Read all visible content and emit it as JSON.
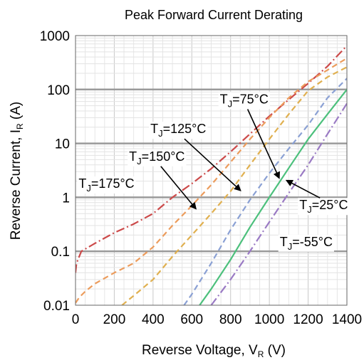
{
  "chart_data": {
    "type": "line",
    "title": "Peak Forward Current Derating",
    "xlabel": {
      "main": "Reverse Voltage, V",
      "sub": "R",
      "suffix": " (V)"
    },
    "ylabel": {
      "main": "Reverse Current, I",
      "sub": "R",
      "suffix": " (A)"
    },
    "xlim": [
      0,
      1400
    ],
    "ylim": [
      0.01,
      1000
    ],
    "yscale": "log",
    "grid": true,
    "x_ticks": [
      "0",
      "200",
      "400",
      "600",
      "800",
      "1000",
      "1200",
      "1400"
    ],
    "y_ticks": [
      "0.01",
      "0.1",
      "1",
      "10",
      "100",
      "1000"
    ],
    "series": [
      {
        "name": "T_J=175°C",
        "label_main": "T",
        "label_sub": "J",
        "label_rest": "=175°C",
        "color": "#cc4a4a",
        "dash": "dashdot",
        "points": [
          [
            0,
            0.04
          ],
          [
            5,
            0.06
          ],
          [
            30,
            0.1
          ],
          [
            100,
            0.14
          ],
          [
            200,
            0.22
          ],
          [
            300,
            0.32
          ],
          [
            400,
            0.5
          ],
          [
            500,
            1.0
          ],
          [
            600,
            1.8
          ],
          [
            700,
            3.4
          ],
          [
            800,
            7
          ],
          [
            900,
            15
          ],
          [
            1000,
            32
          ],
          [
            1100,
            65
          ],
          [
            1200,
            130
          ],
          [
            1300,
            270
          ],
          [
            1400,
            650
          ]
        ]
      },
      {
        "name": "T_J=150°C",
        "label_main": "T",
        "label_sub": "J",
        "label_rest": "=150°C",
        "color": "#ec9c5c",
        "dash": "dash",
        "points": [
          [
            0,
            0.011
          ],
          [
            20,
            0.014
          ],
          [
            50,
            0.018
          ],
          [
            100,
            0.025
          ],
          [
            200,
            0.04
          ],
          [
            300,
            0.06
          ],
          [
            400,
            0.12
          ],
          [
            500,
            0.3
          ],
          [
            600,
            0.7
          ],
          [
            700,
            1.7
          ],
          [
            800,
            4.5
          ],
          [
            900,
            12
          ],
          [
            1000,
            30
          ],
          [
            1100,
            70
          ],
          [
            1200,
            140
          ],
          [
            1300,
            230
          ],
          [
            1400,
            380
          ]
        ]
      },
      {
        "name": "T_J=125°C",
        "label_main": "T",
        "label_sub": "J",
        "label_rest": "=125°C",
        "color": "#e0b050",
        "dash": "dash",
        "points": [
          [
            240,
            0.01
          ],
          [
            300,
            0.015
          ],
          [
            400,
            0.03
          ],
          [
            500,
            0.08
          ],
          [
            600,
            0.2
          ],
          [
            700,
            0.5
          ],
          [
            800,
            1.3
          ],
          [
            900,
            4
          ],
          [
            1000,
            12
          ],
          [
            1100,
            35
          ],
          [
            1200,
            95
          ],
          [
            1300,
            170
          ],
          [
            1400,
            260
          ]
        ]
      },
      {
        "name": "T_J=75°C",
        "label_main": "T",
        "label_sub": "J",
        "label_rest": "=75°C",
        "color": "#8aa0d4",
        "dash": "dash",
        "points": [
          [
            560,
            0.01
          ],
          [
            600,
            0.016
          ],
          [
            700,
            0.06
          ],
          [
            800,
            0.25
          ],
          [
            900,
            0.9
          ],
          [
            1000,
            2.8
          ],
          [
            1100,
            8
          ],
          [
            1200,
            22
          ],
          [
            1300,
            70
          ],
          [
            1400,
            160
          ]
        ]
      },
      {
        "name": "T_J=25°C",
        "label_main": "T",
        "label_sub": "J",
        "label_rest": "=25°C",
        "color": "#4cc07c",
        "dash": "solid",
        "points": [
          [
            640,
            0.01
          ],
          [
            700,
            0.02
          ],
          [
            800,
            0.07
          ],
          [
            900,
            0.28
          ],
          [
            1000,
            1.0
          ],
          [
            1100,
            3.5
          ],
          [
            1200,
            12
          ],
          [
            1300,
            35
          ],
          [
            1400,
            100
          ]
        ]
      },
      {
        "name": "T_J=-55°C",
        "label_main": "T",
        "label_sub": "J",
        "label_rest": "=-55°C",
        "color": "#9a7ac4",
        "dash": "dashdot",
        "points": [
          [
            700,
            0.01
          ],
          [
            800,
            0.03
          ],
          [
            900,
            0.1
          ],
          [
            1000,
            0.35
          ],
          [
            1100,
            1.2
          ],
          [
            1200,
            4
          ],
          [
            1300,
            15
          ],
          [
            1400,
            55
          ]
        ]
      }
    ],
    "annotations": [
      {
        "series": 0,
        "text_at": [
          160,
          1.5
        ],
        "arrow_to": null
      },
      {
        "series": 1,
        "text_at": [
          420,
          4.8
        ],
        "arrow_to": [
          620,
          0.62
        ]
      },
      {
        "series": 2,
        "text_at": [
          530,
          15.5
        ],
        "arrow_to": [
          850,
          1.35
        ]
      },
      {
        "series": 3,
        "text_at": [
          870,
          55
        ],
        "arrow_to": [
          1050,
          2.3
        ]
      },
      {
        "series": 4,
        "text_at": [
          1280,
          0.6
        ],
        "arrow_to": [
          1090,
          2.05
        ]
      },
      {
        "series": 5,
        "text_at": [
          1190,
          0.125
        ],
        "arrow_to": null
      }
    ]
  }
}
